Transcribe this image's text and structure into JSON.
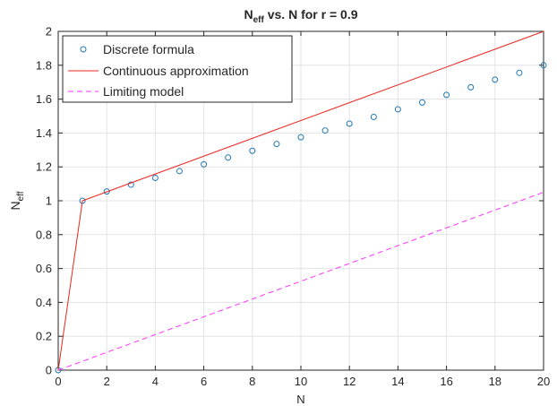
{
  "chart_data": {
    "type": "line",
    "title": {
      "main": "N",
      "sub": "eff",
      "rest": " vs. N for r = 0.9"
    },
    "xlabel": "N",
    "ylabel": {
      "main": "N",
      "sub": "eff"
    },
    "xlim": [
      0,
      20
    ],
    "ylim": [
      0,
      2
    ],
    "x_ticks": [
      0,
      2,
      4,
      6,
      8,
      10,
      12,
      14,
      16,
      18,
      20
    ],
    "y_ticks": [
      0,
      0.2,
      0.4,
      0.6,
      0.8,
      1,
      1.2,
      1.4,
      1.6,
      1.8,
      2
    ],
    "grid": true,
    "legend": "top-left",
    "series": [
      {
        "name": "Discrete formula",
        "style": "markers",
        "marker": "circle",
        "color": "#1f77b4",
        "x": [
          0,
          1,
          2,
          3,
          4,
          5,
          6,
          7,
          8,
          9,
          10,
          11,
          12,
          13,
          14,
          15,
          16,
          17,
          18,
          19,
          20
        ],
        "y": [
          0,
          1.0,
          1.055,
          1.095,
          1.135,
          1.175,
          1.215,
          1.255,
          1.295,
          1.335,
          1.375,
          1.415,
          1.455,
          1.495,
          1.54,
          1.58,
          1.625,
          1.67,
          1.715,
          1.755,
          1.8
        ]
      },
      {
        "name": "Continuous approximation",
        "style": "solid",
        "color": "#e8261e",
        "x": [
          0,
          1,
          20
        ],
        "y": [
          0,
          1.0,
          2.0
        ]
      },
      {
        "name": "Limiting model",
        "style": "dashed",
        "color": "#ff33ff",
        "x": [
          0,
          20
        ],
        "y": [
          0,
          1.05
        ]
      }
    ]
  }
}
